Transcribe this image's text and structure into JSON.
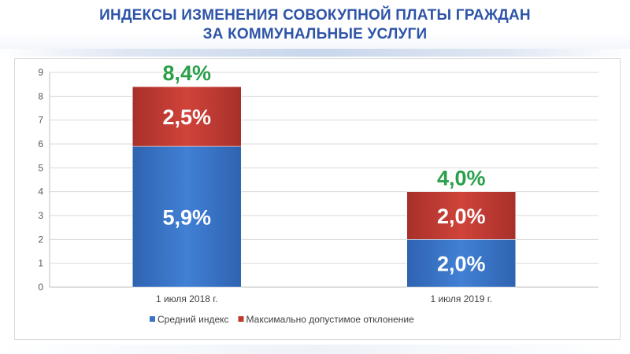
{
  "page": {
    "title_line1": "ИНДЕКСЫ ИЗМЕНЕНИЯ СОВОКУПНОЙ ПЛАТЫ ГРАЖДАН",
    "title_line2": "ЗА КОММУНАЛЬНЫЕ УСЛУГИ"
  },
  "chart_data": {
    "type": "bar",
    "stacked": true,
    "categories": [
      "1 июля 2018 г.",
      "1 июля 2019 г."
    ],
    "series": [
      {
        "name": "Средний индекс",
        "values": [
          5.9,
          2.0
        ],
        "labels": [
          "5,9%",
          "2,0%"
        ],
        "color": "#3a74c4"
      },
      {
        "name": "Максимально допустимое отклонение",
        "values": [
          2.5,
          2.0
        ],
        "labels": [
          "2,5%",
          "2,0%"
        ],
        "color": "#c0392b"
      }
    ],
    "totals": [
      8.4,
      4.0
    ],
    "total_labels": [
      "8,4%",
      "4,0%"
    ],
    "total_label_color": "#2aa04a",
    "ylim": [
      0,
      9
    ],
    "yticks": [
      "0",
      "1",
      "2",
      "3",
      "4",
      "5",
      "6",
      "7",
      "8",
      "9"
    ],
    "grid": true,
    "legend_position": "bottom",
    "xlabel": "",
    "ylabel": ""
  }
}
